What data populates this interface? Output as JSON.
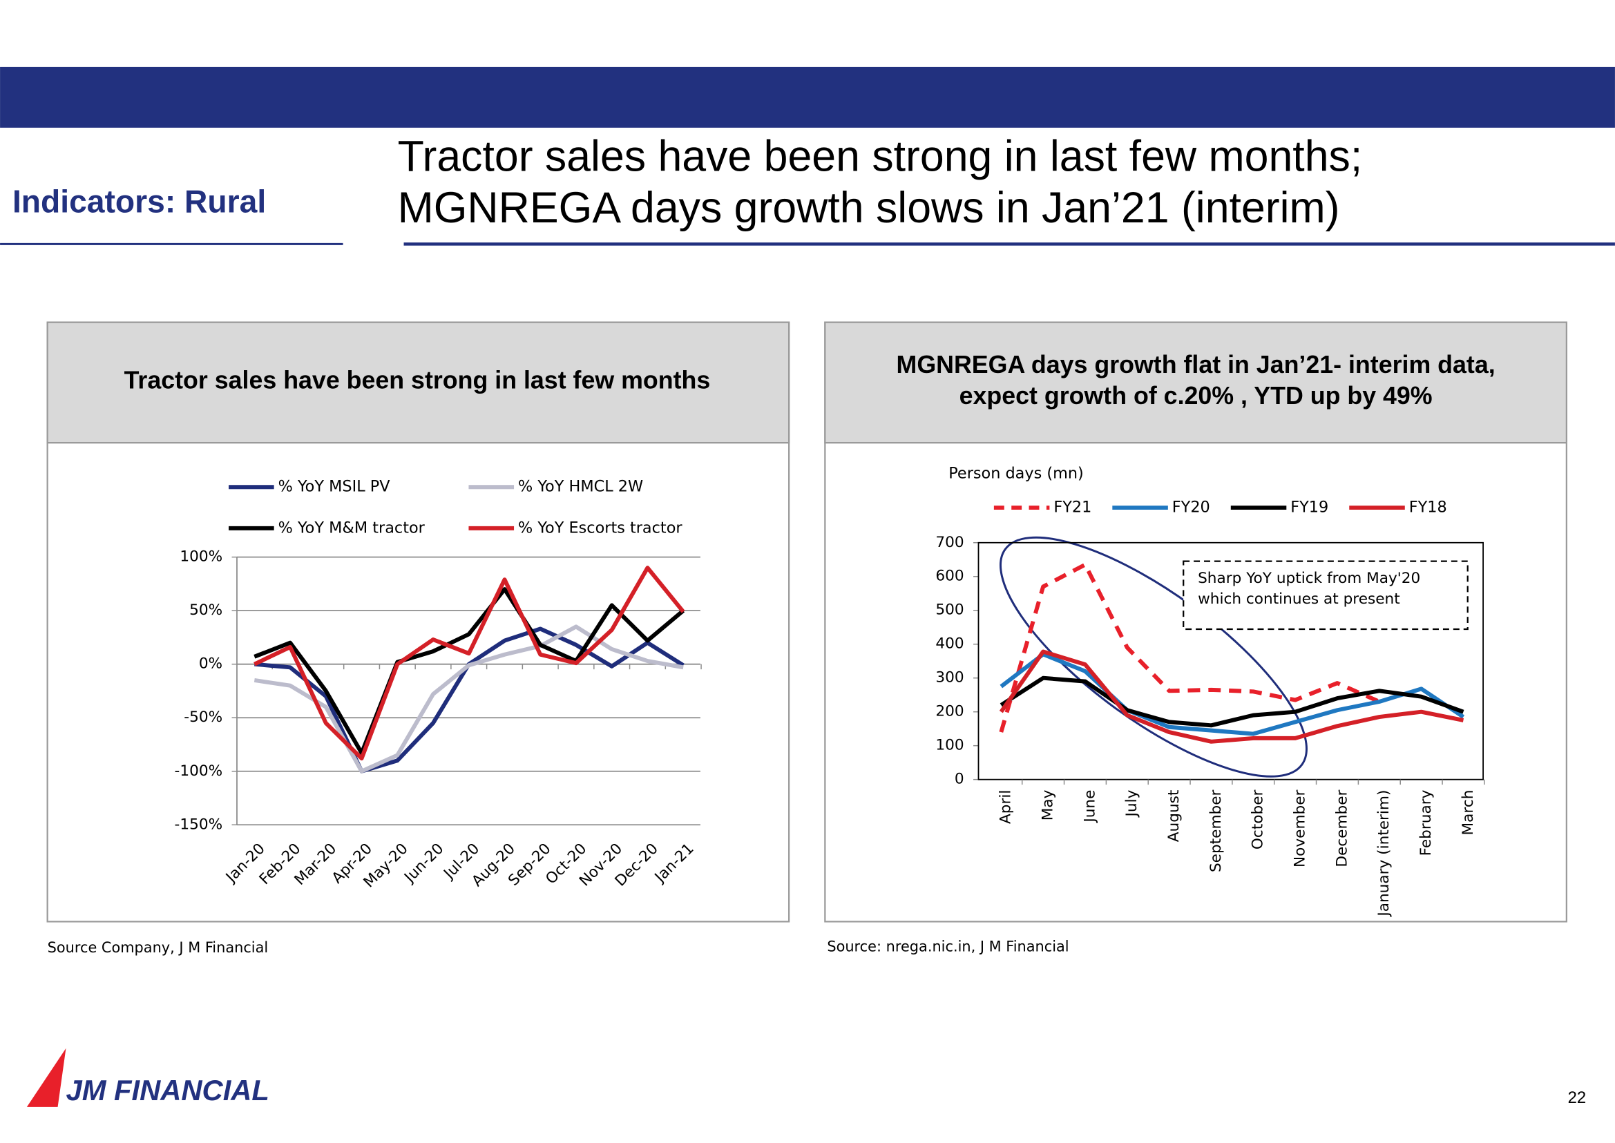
{
  "header": {
    "section": "Indicators: Rural",
    "title": [
      "Tractor sales have been strong in last few months;",
      "MGNREGA days growth slows in Jan’21 (interim)"
    ]
  },
  "chart_data": [
    {
      "type": "line",
      "title": [
        "Tractor sales have been strong in last few months"
      ],
      "categories": [
        "Jan-20",
        "Feb-20",
        "Mar-20",
        "Apr-20",
        "May-20",
        "Jun-20",
        "Jul-20",
        "Aug-20",
        "Sep-20",
        "Oct-20",
        "Nov-20",
        "Dec-20",
        "Jan-21"
      ],
      "series": [
        {
          "name": "% YoY MSIL PV",
          "color": "#1f2d7b",
          "values": [
            0,
            -3,
            -30,
            -100,
            -90,
            -55,
            0,
            22,
            33,
            18,
            -2,
            20,
            -1
          ]
        },
        {
          "name": "% YoY HMCL 2W",
          "color": "#bcbccc",
          "values": [
            -15,
            -20,
            -40,
            -100,
            -85,
            -28,
            -1,
            9,
            17,
            35,
            14,
            3,
            -3
          ]
        },
        {
          "name": "% YoY M&M tractor",
          "color": "#000000",
          "values": [
            7,
            20,
            -25,
            -83,
            2,
            12,
            28,
            70,
            18,
            3,
            55,
            22,
            50
          ]
        },
        {
          "name": "% YoY Escorts tractor",
          "color": "#d42027",
          "values": [
            0,
            16,
            -55,
            -88,
            0,
            23,
            10,
            79,
            9,
            1,
            32,
            90,
            49
          ]
        }
      ],
      "ylim": [
        -150,
        100
      ],
      "yticks": [
        {
          "value": -150,
          "label": "-150%"
        },
        {
          "value": -100,
          "label": "-100%"
        },
        {
          "value": -50,
          "label": "-50%"
        },
        {
          "value": 0,
          "label": "0%"
        },
        {
          "value": 50,
          "label": "50%"
        },
        {
          "value": 100,
          "label": "100%"
        }
      ],
      "grid": true,
      "legend": "top"
    },
    {
      "type": "line",
      "title": [
        "MGNREGA days growth flat in Jan’21- interim data,",
        "expect growth of c.20% , YTD up by 49%"
      ],
      "y_label": "Person days (mn)",
      "annotation": [
        "Sharp YoY uptick from May'20",
        "which continues at present"
      ],
      "categories": [
        "April",
        "May",
        "June",
        "July",
        "August",
        "September",
        "October",
        "November",
        "December",
        "January (interim)",
        "February",
        "March"
      ],
      "series": [
        {
          "name": "FY21",
          "color": "#e8202a",
          "dashed": true,
          "values": [
            140,
            570,
            635,
            390,
            262,
            265,
            260,
            235,
            285,
            230,
            null,
            null
          ]
        },
        {
          "name": "FY20",
          "color": "#1f78c1",
          "values": [
            275,
            370,
            320,
            205,
            155,
            145,
            135,
            170,
            205,
            230,
            268,
            185
          ]
        },
        {
          "name": "FY19",
          "color": "#000000",
          "values": [
            220,
            300,
            290,
            205,
            170,
            160,
            190,
            200,
            240,
            262,
            245,
            200
          ]
        },
        {
          "name": "FY18",
          "color": "#d42027",
          "values": [
            200,
            378,
            340,
            190,
            140,
            112,
            122,
            122,
            158,
            185,
            200,
            175
          ]
        }
      ],
      "ylim": [
        0,
        700
      ],
      "yticks": [
        0,
        100,
        200,
        300,
        400,
        500,
        600,
        700
      ],
      "grid": false,
      "legend": "top"
    }
  ],
  "footer": {
    "sources": [
      "Source Company,  J M Financial",
      "Source: nrega.nic.in, J M Financial"
    ],
    "logo": "JM FINANCIAL",
    "page": "22"
  }
}
